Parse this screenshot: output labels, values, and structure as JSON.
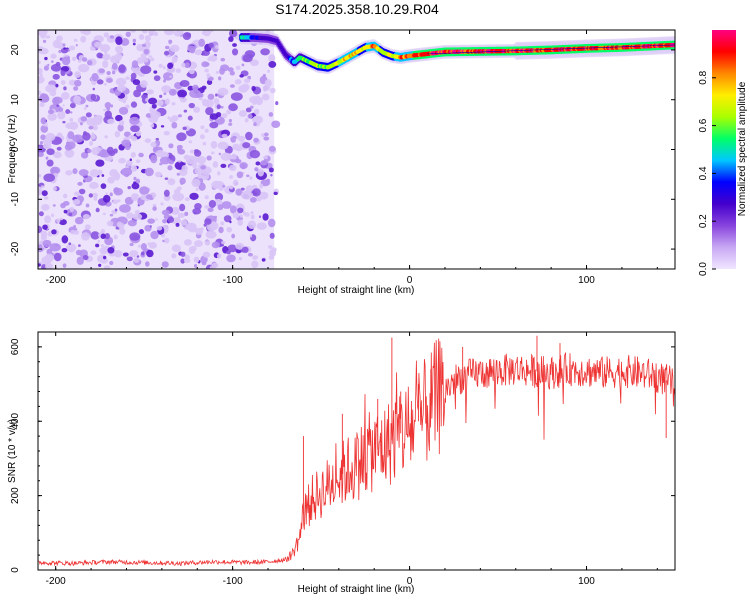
{
  "title": "S174.2025.358.10.29.R04",
  "chart_data": [
    {
      "type": "heatmap",
      "name": "spectrogram",
      "title": "S174.2025.358.10.29.R04",
      "xlabel": "Height of straight line (km)",
      "ylabel": "Frequency (Hz)",
      "xlim": [
        -210,
        150
      ],
      "ylim": [
        -24,
        24
      ],
      "xticks": [
        -200,
        -100,
        0,
        100
      ],
      "yticks": [
        -20,
        -10,
        0,
        10,
        20
      ],
      "colorbar": {
        "label": "Normalized spectral amplitude",
        "range": [
          0,
          1
        ],
        "ticks": [
          0.0,
          0.2,
          0.4,
          0.6,
          0.8
        ],
        "colormap": [
          "#f0e6ff",
          "#c8a8f4",
          "#8844dd",
          "#4400cc",
          "#0000ff",
          "#00c8ff",
          "#00ff66",
          "#aaff00",
          "#ffee00",
          "#ff8800",
          "#ff0000",
          "#ff0080"
        ]
      },
      "noise_region_x": [
        -210,
        -72
      ],
      "signal_trace": {
        "x": [
          -95,
          -88,
          -80,
          -75,
          -70,
          -65,
          -62,
          -58,
          -52,
          -46,
          -40,
          -35,
          -30,
          -25,
          -20,
          -15,
          -10,
          -5,
          0,
          10,
          20,
          40,
          60,
          80,
          100,
          120,
          150
        ],
        "freq": [
          22.5,
          22.5,
          22.3,
          21.8,
          19,
          17.5,
          18.5,
          17.8,
          16.8,
          16.5,
          17.5,
          18.5,
          19.5,
          20.5,
          20.8,
          19.5,
          18.8,
          18.5,
          18.8,
          19.2,
          19.6,
          19.7,
          19.8,
          20.0,
          20.3,
          20.5,
          21.0
        ],
        "amplitude": [
          0.6,
          0.35,
          0.3,
          0.3,
          0.25,
          0.5,
          0.55,
          0.6,
          0.7,
          0.6,
          0.75,
          0.8,
          0.75,
          0.7,
          0.9,
          0.65,
          0.7,
          0.85,
          0.9,
          0.95,
          0.97,
          0.98,
          0.97,
          0.96,
          0.97,
          0.98,
          0.98
        ]
      }
    },
    {
      "type": "line",
      "name": "snr",
      "xlabel": "Height of straight line (km)",
      "ylabel": "SNR (10 * v/v)",
      "xlim": [
        -210,
        150
      ],
      "ylim": [
        0,
        640
      ],
      "xticks": [
        -200,
        -100,
        0,
        100
      ],
      "yticks": [
        0,
        200,
        400,
        600
      ],
      "color": "#ee3333",
      "series": [
        {
          "name": "SNR",
          "x": [
            -210,
            -190,
            -170,
            -150,
            -130,
            -110,
            -90,
            -80,
            -70,
            -66,
            -62,
            -60,
            -55,
            -50,
            -45,
            -40,
            -35,
            -30,
            -25,
            -20,
            -15,
            -12,
            -8,
            -4,
            0,
            5,
            10,
            15,
            20,
            25,
            30,
            40,
            50,
            60,
            70,
            80,
            90,
            100,
            110,
            120,
            130,
            140,
            150
          ],
          "y": [
            20,
            18,
            22,
            20,
            18,
            22,
            20,
            22,
            28,
            45,
            90,
            150,
            190,
            210,
            230,
            250,
            270,
            280,
            310,
            320,
            330,
            340,
            360,
            370,
            380,
            400,
            430,
            460,
            480,
            510,
            520,
            530,
            535,
            540,
            535,
            530,
            540,
            535,
            530,
            535,
            530,
            520,
            500
          ]
        }
      ],
      "spikes": [
        {
          "x": -60,
          "y": 360
        },
        {
          "x": -38,
          "y": 420
        },
        {
          "x": -18,
          "y": 460
        },
        {
          "x": -10,
          "y": 625
        },
        {
          "x": -5,
          "y": 480
        },
        {
          "x": 5,
          "y": 500
        },
        {
          "x": 12,
          "y": 540
        },
        {
          "x": 30,
          "y": 600
        },
        {
          "x": 72,
          "y": 630
        },
        {
          "x": 85,
          "y": 610
        },
        {
          "x": 145,
          "y": 355
        }
      ]
    }
  ]
}
